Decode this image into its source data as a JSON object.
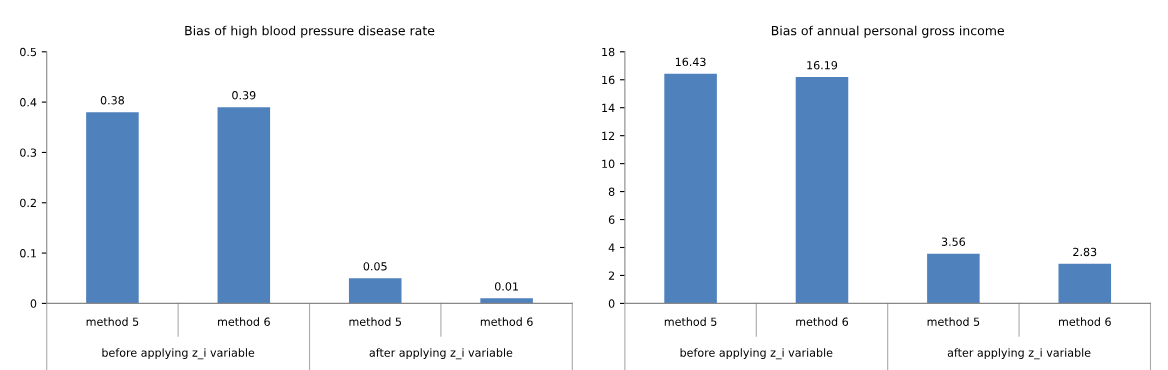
{
  "chart_data": [
    {
      "type": "bar",
      "title": "Bias of high blood pressure disease rate",
      "categories": [
        "method 5",
        "method 6",
        "method 5",
        "method 6"
      ],
      "values": [
        0.38,
        0.39,
        0.05,
        0.01
      ],
      "color": "#4f81bd",
      "ylim": [
        0,
        0.5
      ],
      "yticks": [
        0,
        0.1,
        0.2,
        0.3,
        0.4,
        0.5
      ],
      "data_labels": true,
      "annotations": [
        "before applying z_i variable",
        "after applying z_i variable"
      ]
    },
    {
      "type": "bar",
      "title": "Bias of annual personal gross income",
      "categories": [
        "method 5",
        "method 6",
        "method 5",
        "method 6"
      ],
      "values": [
        16.43,
        16.19,
        3.56,
        2.83
      ],
      "color": "#4f81bd",
      "ylim": [
        0,
        18
      ],
      "yticks": [
        0,
        2,
        4,
        6,
        8,
        10,
        12,
        14,
        16,
        18
      ],
      "data_labels": true,
      "annotations": [
        "before applying z_i variable",
        "after applying z_i variable"
      ]
    }
  ]
}
